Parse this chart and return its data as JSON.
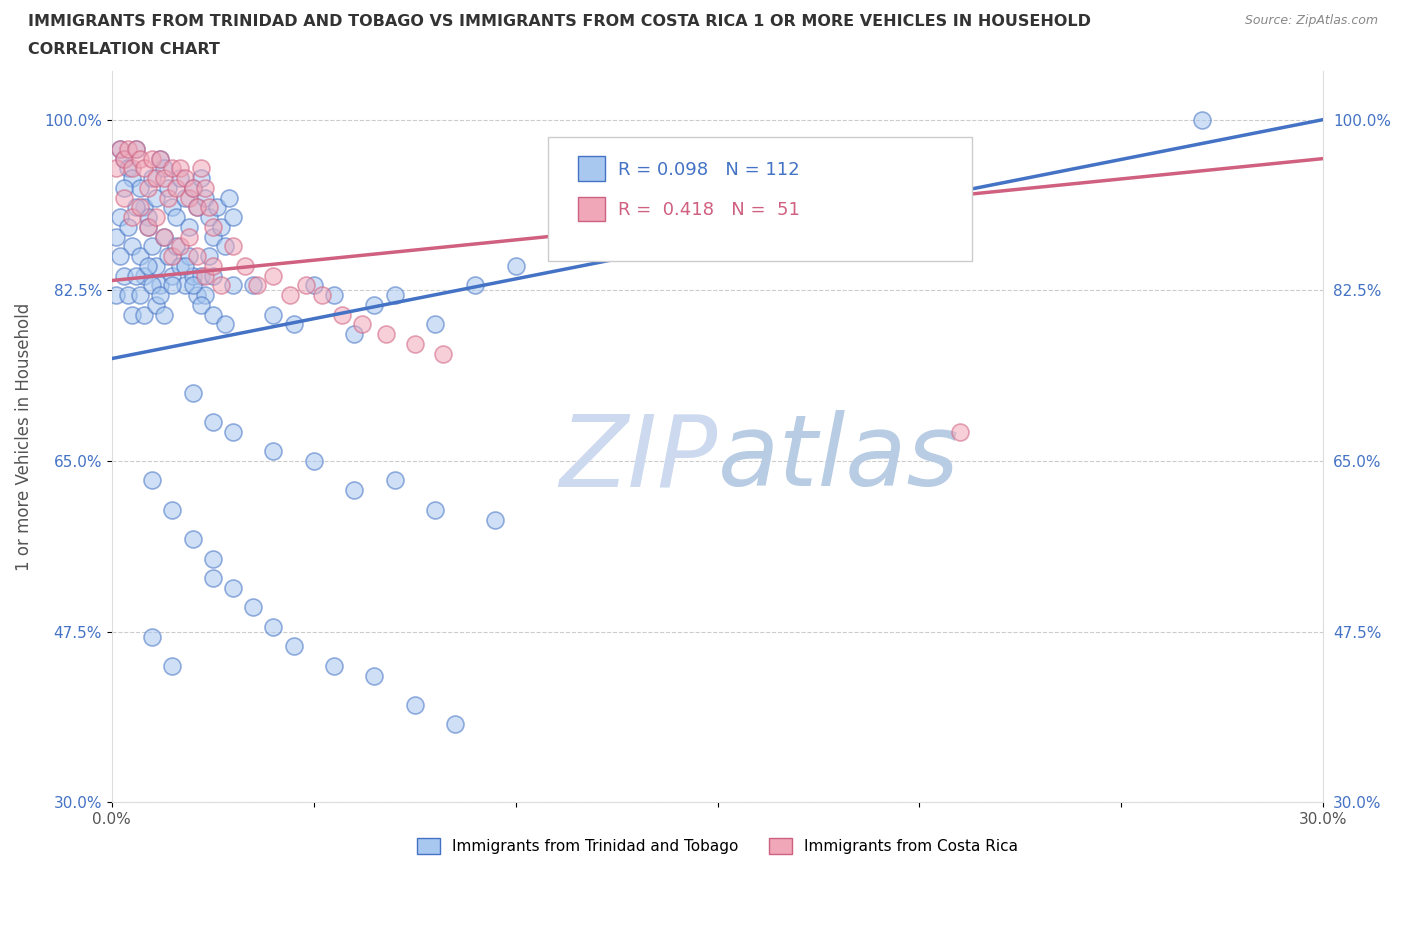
{
  "title_line1": "IMMIGRANTS FROM TRINIDAD AND TOBAGO VS IMMIGRANTS FROM COSTA RICA 1 OR MORE VEHICLES IN HOUSEHOLD",
  "title_line2": "CORRELATION CHART",
  "source": "Source: ZipAtlas.com",
  "ylabel": "1 or more Vehicles in Household",
  "xmin": 0.0,
  "xmax": 0.3,
  "ymin": 0.3,
  "ymax": 1.05,
  "yticks": [
    0.3,
    0.475,
    0.65,
    0.825,
    1.0
  ],
  "ytick_labels": [
    "30.0%",
    "47.5%",
    "65.0%",
    "82.5%",
    "100.0%"
  ],
  "xticks": [
    0.0,
    0.05,
    0.1,
    0.15,
    0.2,
    0.25,
    0.3
  ],
  "xtick_labels": [
    "0.0%",
    "",
    "",
    "",
    "",
    "",
    "30.0%"
  ],
  "color_trinidad": "#a8c8f0",
  "color_costarica": "#f0a8b8",
  "line_color_trinidad": "#4472C4",
  "line_color_costarica": "#d06080",
  "tick_color": "#4472C4",
  "legend_label1": "Immigrants from Trinidad and Tobago",
  "legend_label2": "Immigrants from Costa Rica",
  "trin_line_x0": 0.0,
  "trin_line_y0": 0.755,
  "trin_line_x1": 0.3,
  "trin_line_y1": 1.0,
  "cos_line_x0": 0.0,
  "cos_line_y0": 0.835,
  "cos_line_x1": 0.3,
  "cos_line_y1": 0.96,
  "trinidad_x": [
    0.002,
    0.003,
    0.004,
    0.005,
    0.006,
    0.007,
    0.008,
    0.009,
    0.01,
    0.011,
    0.012,
    0.013,
    0.014,
    0.015,
    0.016,
    0.017,
    0.018,
    0.019,
    0.02,
    0.021,
    0.022,
    0.023,
    0.024,
    0.025,
    0.026,
    0.027,
    0.028,
    0.029,
    0.03,
    0.001,
    0.002,
    0.003,
    0.004,
    0.005,
    0.006,
    0.007,
    0.008,
    0.009,
    0.01,
    0.011,
    0.012,
    0.013,
    0.014,
    0.015,
    0.016,
    0.017,
    0.018,
    0.019,
    0.02,
    0.021,
    0.022,
    0.023,
    0.024,
    0.025,
    0.001,
    0.002,
    0.003,
    0.004,
    0.005,
    0.006,
    0.007,
    0.008,
    0.009,
    0.01,
    0.011,
    0.012,
    0.013,
    0.015,
    0.018,
    0.02,
    0.022,
    0.025,
    0.028,
    0.03,
    0.035,
    0.04,
    0.045,
    0.05,
    0.055,
    0.06,
    0.065,
    0.07,
    0.08,
    0.09,
    0.1,
    0.02,
    0.025,
    0.03,
    0.04,
    0.05,
    0.06,
    0.07,
    0.08,
    0.095,
    0.01,
    0.015,
    0.02,
    0.025,
    0.03,
    0.035,
    0.04,
    0.045,
    0.055,
    0.065,
    0.075,
    0.085,
    0.01,
    0.015,
    0.025,
    0.27
  ],
  "trinidad_y": [
    0.97,
    0.96,
    0.95,
    0.94,
    0.97,
    0.93,
    0.91,
    0.9,
    0.94,
    0.92,
    0.96,
    0.95,
    0.93,
    0.91,
    0.9,
    0.94,
    0.92,
    0.89,
    0.93,
    0.91,
    0.94,
    0.92,
    0.9,
    0.88,
    0.91,
    0.89,
    0.87,
    0.92,
    0.9,
    0.88,
    0.9,
    0.93,
    0.89,
    0.87,
    0.91,
    0.86,
    0.84,
    0.89,
    0.87,
    0.85,
    0.83,
    0.88,
    0.86,
    0.84,
    0.87,
    0.85,
    0.83,
    0.86,
    0.84,
    0.82,
    0.84,
    0.82,
    0.86,
    0.84,
    0.82,
    0.86,
    0.84,
    0.82,
    0.8,
    0.84,
    0.82,
    0.8,
    0.85,
    0.83,
    0.81,
    0.82,
    0.8,
    0.83,
    0.85,
    0.83,
    0.81,
    0.8,
    0.79,
    0.83,
    0.83,
    0.8,
    0.79,
    0.83,
    0.82,
    0.78,
    0.81,
    0.82,
    0.79,
    0.83,
    0.85,
    0.72,
    0.69,
    0.68,
    0.66,
    0.65,
    0.62,
    0.63,
    0.6,
    0.59,
    0.63,
    0.6,
    0.57,
    0.55,
    0.52,
    0.5,
    0.48,
    0.46,
    0.44,
    0.43,
    0.4,
    0.38,
    0.47,
    0.44,
    0.53,
    1.0
  ],
  "costarica_x": [
    0.001,
    0.002,
    0.003,
    0.004,
    0.005,
    0.006,
    0.007,
    0.008,
    0.009,
    0.01,
    0.011,
    0.012,
    0.013,
    0.014,
    0.015,
    0.016,
    0.017,
    0.018,
    0.019,
    0.02,
    0.021,
    0.022,
    0.023,
    0.024,
    0.025,
    0.003,
    0.005,
    0.007,
    0.009,
    0.011,
    0.013,
    0.015,
    0.017,
    0.019,
    0.021,
    0.023,
    0.025,
    0.027,
    0.03,
    0.033,
    0.036,
    0.04,
    0.044,
    0.048,
    0.052,
    0.057,
    0.062,
    0.068,
    0.075,
    0.082,
    0.21
  ],
  "costarica_y": [
    0.95,
    0.97,
    0.96,
    0.97,
    0.95,
    0.97,
    0.96,
    0.95,
    0.93,
    0.96,
    0.94,
    0.96,
    0.94,
    0.92,
    0.95,
    0.93,
    0.95,
    0.94,
    0.92,
    0.93,
    0.91,
    0.95,
    0.93,
    0.91,
    0.89,
    0.92,
    0.9,
    0.91,
    0.89,
    0.9,
    0.88,
    0.86,
    0.87,
    0.88,
    0.86,
    0.84,
    0.85,
    0.83,
    0.87,
    0.85,
    0.83,
    0.84,
    0.82,
    0.83,
    0.82,
    0.8,
    0.79,
    0.78,
    0.77,
    0.76,
    0.68
  ]
}
